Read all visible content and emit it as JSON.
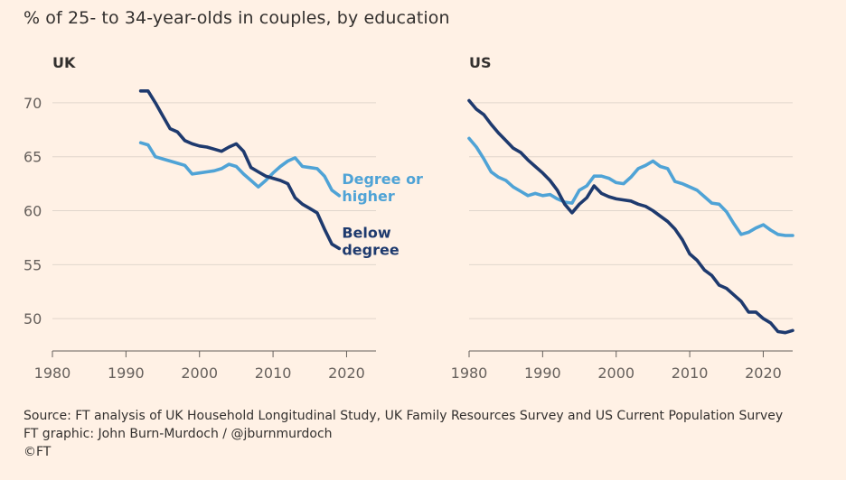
{
  "title": "% of 25- to 34-year-olds in couples, by education",
  "colors": {
    "background": "#fff1e5",
    "degree": "#4fa3d6",
    "below": "#1e3a6e",
    "grid": "#e0d6cc",
    "axis": "#66605c"
  },
  "chart_data": [
    {
      "type": "line",
      "panel_title": "UK",
      "xlim": [
        1980,
        2024
      ],
      "ylim": [
        47,
        72
      ],
      "x_ticks": [
        1980,
        1990,
        2000,
        2010,
        2020
      ],
      "y_ticks": [
        50,
        55,
        60,
        65,
        70
      ],
      "grid": true,
      "series": [
        {
          "name": "Degree or higher",
          "color": "#4fa3d6",
          "points": [
            [
              1992,
              66.3
            ],
            [
              1993,
              66.1
            ],
            [
              1994,
              65.0
            ],
            [
              1995,
              64.8
            ],
            [
              1996,
              64.6
            ],
            [
              1997,
              64.4
            ],
            [
              1998,
              64.2
            ],
            [
              1999,
              63.4
            ],
            [
              2000,
              63.5
            ],
            [
              2001,
              63.6
            ],
            [
              2002,
              63.7
            ],
            [
              2003,
              63.9
            ],
            [
              2004,
              64.3
            ],
            [
              2005,
              64.1
            ],
            [
              2006,
              63.4
            ],
            [
              2007,
              62.8
            ],
            [
              2008,
              62.2
            ],
            [
              2009,
              62.8
            ],
            [
              2010,
              63.5
            ],
            [
              2011,
              64.1
            ],
            [
              2012,
              64.6
            ],
            [
              2013,
              64.9
            ],
            [
              2014,
              64.1
            ],
            [
              2015,
              64.0
            ],
            [
              2016,
              63.9
            ],
            [
              2017,
              63.2
            ],
            [
              2018,
              61.9
            ],
            [
              2019,
              61.4
            ]
          ]
        },
        {
          "name": "Below degree",
          "color": "#1e3a6e",
          "points": [
            [
              1992,
              71.1
            ],
            [
              1993,
              71.1
            ],
            [
              1994,
              70.0
            ],
            [
              1995,
              68.8
            ],
            [
              1996,
              67.6
            ],
            [
              1997,
              67.3
            ],
            [
              1998,
              66.5
            ],
            [
              1999,
              66.2
            ],
            [
              2000,
              66.0
            ],
            [
              2001,
              65.9
            ],
            [
              2002,
              65.7
            ],
            [
              2003,
              65.5
            ],
            [
              2004,
              65.9
            ],
            [
              2005,
              66.2
            ],
            [
              2006,
              65.5
            ],
            [
              2007,
              64.0
            ],
            [
              2008,
              63.6
            ],
            [
              2009,
              63.2
            ],
            [
              2010,
              63.0
            ],
            [
              2011,
              62.8
            ],
            [
              2012,
              62.5
            ],
            [
              2013,
              61.2
            ],
            [
              2014,
              60.6
            ],
            [
              2015,
              60.2
            ],
            [
              2016,
              59.8
            ],
            [
              2017,
              58.3
            ],
            [
              2018,
              56.9
            ],
            [
              2019,
              56.5
            ]
          ]
        }
      ],
      "labels": [
        {
          "series": "Degree or higher",
          "lines": [
            "Degree or",
            "higher"
          ]
        },
        {
          "series": "Below degree",
          "lines": [
            "Below",
            "degree"
          ]
        }
      ]
    },
    {
      "type": "line",
      "panel_title": "US",
      "xlim": [
        1980,
        2024
      ],
      "ylim": [
        47,
        72
      ],
      "x_ticks": [
        1980,
        1990,
        2000,
        2010,
        2020
      ],
      "y_ticks": [
        50,
        55,
        60,
        65,
        70
      ],
      "grid": true,
      "series": [
        {
          "name": "Degree or higher",
          "color": "#4fa3d6",
          "points": [
            [
              1980,
              66.7
            ],
            [
              1981,
              65.9
            ],
            [
              1982,
              64.8
            ],
            [
              1983,
              63.6
            ],
            [
              1984,
              63.1
            ],
            [
              1985,
              62.8
            ],
            [
              1986,
              62.2
            ],
            [
              1987,
              61.8
            ],
            [
              1988,
              61.4
            ],
            [
              1989,
              61.6
            ],
            [
              1990,
              61.4
            ],
            [
              1991,
              61.5
            ],
            [
              1992,
              61.1
            ],
            [
              1993,
              60.8
            ],
            [
              1994,
              60.7
            ],
            [
              1995,
              61.9
            ],
            [
              1996,
              62.3
            ],
            [
              1997,
              63.2
            ],
            [
              1998,
              63.2
            ],
            [
              1999,
              63.0
            ],
            [
              2000,
              62.6
            ],
            [
              2001,
              62.5
            ],
            [
              2002,
              63.1
            ],
            [
              2003,
              63.9
            ],
            [
              2004,
              64.2
            ],
            [
              2005,
              64.6
            ],
            [
              2006,
              64.1
            ],
            [
              2007,
              63.9
            ],
            [
              2008,
              62.7
            ],
            [
              2009,
              62.5
            ],
            [
              2010,
              62.2
            ],
            [
              2011,
              61.9
            ],
            [
              2012,
              61.3
            ],
            [
              2013,
              60.7
            ],
            [
              2014,
              60.6
            ],
            [
              2015,
              59.9
            ],
            [
              2016,
              58.8
            ],
            [
              2017,
              57.8
            ],
            [
              2018,
              58.0
            ],
            [
              2019,
              58.4
            ],
            [
              2020,
              58.7
            ],
            [
              2021,
              58.2
            ],
            [
              2022,
              57.8
            ],
            [
              2023,
              57.7
            ],
            [
              2024,
              57.7
            ]
          ]
        },
        {
          "name": "Below degree",
          "color": "#1e3a6e",
          "points": [
            [
              1980,
              70.2
            ],
            [
              1981,
              69.4
            ],
            [
              1982,
              68.9
            ],
            [
              1983,
              68.0
            ],
            [
              1984,
              67.2
            ],
            [
              1985,
              66.5
            ],
            [
              1986,
              65.8
            ],
            [
              1987,
              65.4
            ],
            [
              1988,
              64.7
            ],
            [
              1989,
              64.1
            ],
            [
              1990,
              63.5
            ],
            [
              1991,
              62.8
            ],
            [
              1992,
              61.9
            ],
            [
              1993,
              60.6
            ],
            [
              1994,
              59.8
            ],
            [
              1995,
              60.6
            ],
            [
              1996,
              61.2
            ],
            [
              1997,
              62.3
            ],
            [
              1998,
              61.6
            ],
            [
              1999,
              61.3
            ],
            [
              2000,
              61.1
            ],
            [
              2001,
              61.0
            ],
            [
              2002,
              60.9
            ],
            [
              2003,
              60.6
            ],
            [
              2004,
              60.4
            ],
            [
              2005,
              60.0
            ],
            [
              2006,
              59.5
            ],
            [
              2007,
              59.0
            ],
            [
              2008,
              58.3
            ],
            [
              2009,
              57.3
            ],
            [
              2010,
              56.0
            ],
            [
              2011,
              55.4
            ],
            [
              2012,
              54.5
            ],
            [
              2013,
              54.0
            ],
            [
              2014,
              53.1
            ],
            [
              2015,
              52.8
            ],
            [
              2016,
              52.2
            ],
            [
              2017,
              51.6
            ],
            [
              2018,
              50.6
            ],
            [
              2019,
              50.6
            ],
            [
              2020,
              50.0
            ],
            [
              2021,
              49.6
            ],
            [
              2022,
              48.8
            ],
            [
              2023,
              48.7
            ],
            [
              2024,
              48.9
            ]
          ]
        }
      ]
    }
  ],
  "source": {
    "line1": "Source: FT analysis of UK Household Longitudinal Study, UK Family Resources Survey and US Current Population Survey",
    "line2": "FT graphic: John Burn-Murdoch / @jburnmurdoch",
    "line3": "©FT"
  }
}
